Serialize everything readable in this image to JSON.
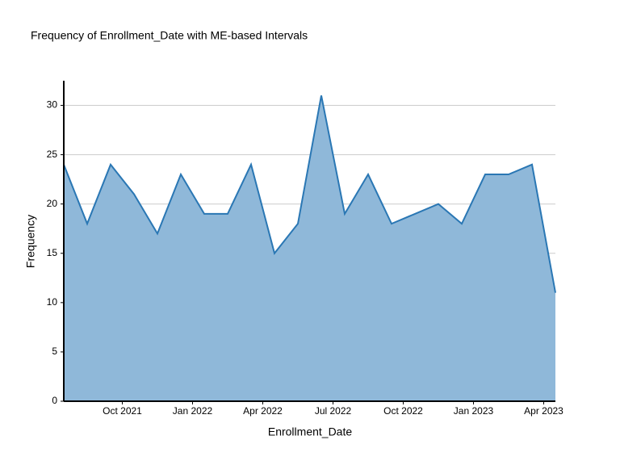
{
  "chart_data": {
    "type": "area",
    "title": "Frequency of Enrollment_Date with ME-based Intervals",
    "x_label": "Enrollment_Date",
    "y_label": "Frequency",
    "x": [
      "2021-07",
      "2021-08",
      "2021-09",
      "2021-10",
      "2021-11",
      "2021-12",
      "2022-01",
      "2022-02",
      "2022-03",
      "2022-04",
      "2022-05",
      "2022-06",
      "2022-07",
      "2022-08",
      "2022-09",
      "2022-10",
      "2022-11",
      "2022-12",
      "2023-01",
      "2023-02",
      "2023-03",
      "2023-04"
    ],
    "series": [
      {
        "name": "Frequency",
        "color": "#2a77b4",
        "fill": "#8fb8d9",
        "values": [
          24,
          18,
          24,
          21,
          17,
          23,
          19,
          19,
          24,
          15,
          18,
          31,
          19,
          23,
          18,
          19,
          20,
          18,
          23,
          23,
          24,
          11
        ]
      }
    ],
    "xlim": [
      "2021-07",
      "2023-04"
    ],
    "xticks": [
      {
        "value": "2021-10",
        "label": "Oct 2021"
      },
      {
        "value": "2022-01",
        "label": "Jan 2022"
      },
      {
        "value": "2022-04",
        "label": "Apr 2022"
      },
      {
        "value": "2022-07",
        "label": "Jul 2022"
      },
      {
        "value": "2022-10",
        "label": "Oct 2022"
      },
      {
        "value": "2023-01",
        "label": "Jan 2023"
      },
      {
        "value": "2023-04",
        "label": "Apr 2023"
      }
    ],
    "ylim": [
      0,
      32.5
    ],
    "yticks": [
      0,
      5,
      10,
      15,
      20,
      25,
      30
    ],
    "grid": true
  }
}
